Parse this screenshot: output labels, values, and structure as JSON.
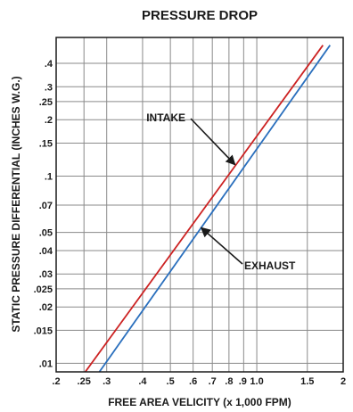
{
  "chart_data": {
    "type": "line",
    "title": "PRESSURE DROP",
    "xlabel": "FREE AREA VELICITY (x 1,000 FPM)",
    "ylabel": "STATIC PRESSURE DIFFERENTIAL (INCHES W.G.)",
    "xscale": "log",
    "yscale": "log",
    "xlim": [
      0.2,
      2.0
    ],
    "ylim": [
      0.009,
      0.55
    ],
    "grid": true,
    "x_ticks": [
      {
        "value": 0.2,
        "label": ".2"
      },
      {
        "value": 0.25,
        "label": ".25"
      },
      {
        "value": 0.3,
        "label": ".3"
      },
      {
        "value": 0.4,
        "label": ".4"
      },
      {
        "value": 0.5,
        "label": ".5"
      },
      {
        "value": 0.6,
        "label": ".6"
      },
      {
        "value": 0.7,
        "label": ".7"
      },
      {
        "value": 0.8,
        "label": ".8"
      },
      {
        "value": 0.9,
        "label": ".9"
      },
      {
        "value": 1.0,
        "label": "1.0"
      },
      {
        "value": 1.5,
        "label": "1.5"
      },
      {
        "value": 2.0,
        "label": "2"
      }
    ],
    "y_ticks": [
      {
        "value": 0.01,
        "label": ".01"
      },
      {
        "value": 0.015,
        "label": ".015"
      },
      {
        "value": 0.02,
        "label": ".02"
      },
      {
        "value": 0.025,
        "label": ".025"
      },
      {
        "value": 0.03,
        "label": ".03"
      },
      {
        "value": 0.04,
        "label": ".04"
      },
      {
        "value": 0.05,
        "label": ".05"
      },
      {
        "value": 0.07,
        "label": ".07"
      },
      {
        "value": 0.1,
        "label": ".1"
      },
      {
        "value": 0.15,
        "label": ".15"
      },
      {
        "value": 0.2,
        "label": ".2"
      },
      {
        "value": 0.25,
        "label": ".25"
      },
      {
        "value": 0.3,
        "label": ".3"
      },
      {
        "value": 0.4,
        "label": ".4"
      }
    ],
    "series": [
      {
        "name": "INTAKE",
        "color": "#cc2222",
        "x": [
          0.25,
          1.7
        ],
        "y": [
          0.0088,
          0.5
        ]
      },
      {
        "name": "EXHAUST",
        "color": "#2a6fbd",
        "x": [
          0.28,
          1.8
        ],
        "y": [
          0.0088,
          0.5
        ]
      }
    ],
    "annotations": [
      {
        "text": "INTAKE",
        "target_x": 0.84,
        "target_y": 0.115
      },
      {
        "text": "EXHAUST",
        "target_x": 0.64,
        "target_y": 0.053
      }
    ]
  }
}
